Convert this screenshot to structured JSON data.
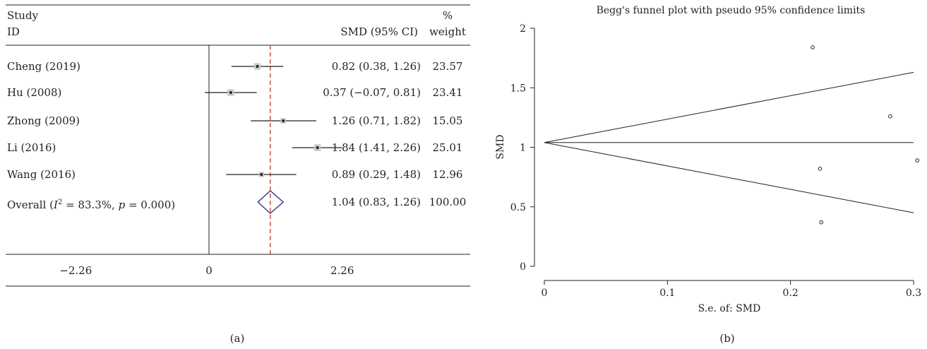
{
  "panel_a": {
    "header": {
      "study": "Study",
      "id": "ID",
      "smd": "SMD (95% CI)",
      "pct": "%",
      "weight": "weight"
    },
    "label": "(a)",
    "overall": {
      "prefix": "Overall (",
      "i": "I",
      "sup": "2",
      "i2_value": " = 83.3%, ",
      "p": "p",
      "p_value": " = 0.000)"
    }
  },
  "panel_b": {
    "label": "(b)"
  },
  "chart_data": [
    {
      "type": "forest",
      "x_ticks": [
        {
          "value": -2.26,
          "label": "−2.26"
        },
        {
          "value": 0,
          "label": "0"
        },
        {
          "value": 2.26,
          "label": "2.26"
        }
      ],
      "xlim": [
        -2.26,
        2.26
      ],
      "null_line": 0,
      "overall_line": 1.04,
      "studies": [
        {
          "name": "Cheng (2019)",
          "smd": 0.82,
          "lo": 0.38,
          "hi": 1.26,
          "ci_text": "0.82 (0.38, 1.26)",
          "weight": "23.57"
        },
        {
          "name": "Hu (2008)",
          "smd": 0.37,
          "lo": -0.07,
          "hi": 0.81,
          "ci_text": "0.37 (−0.07, 0.81)",
          "weight": "23.41"
        },
        {
          "name": "Zhong (2009)",
          "smd": 1.26,
          "lo": 0.71,
          "hi": 1.82,
          "ci_text": "1.26 (0.71, 1.82)",
          "weight": "15.05"
        },
        {
          "name": "Li (2016)",
          "smd": 1.84,
          "lo": 1.41,
          "hi": 2.26,
          "ci_text": "1.84 (1.41, 2.26)",
          "weight": "25.01"
        },
        {
          "name": "Wang (2016)",
          "smd": 0.89,
          "lo": 0.29,
          "hi": 1.48,
          "ci_text": "0.89 (0.29, 1.48)",
          "weight": "12.96"
        }
      ],
      "overall": {
        "smd": 1.04,
        "lo": 0.83,
        "hi": 1.26,
        "ci_text": "1.04 (0.83, 1.26)",
        "weight": "100.00"
      }
    },
    {
      "type": "scatter",
      "title": "Begg's funnel plot with pseudo 95% confidence limits",
      "xlabel": "S.e. of: SMD",
      "ylabel": "SMD",
      "xlim": [
        0,
        0.3
      ],
      "ylim": [
        0,
        2
      ],
      "x_ticks": [
        0,
        0.1,
        0.2,
        0.3
      ],
      "x_tick_labels": [
        "0",
        "0.1",
        "0.2",
        "0.3"
      ],
      "y_ticks": [
        0,
        0.5,
        1,
        1.5,
        2
      ],
      "y_tick_labels": [
        "0",
        "0.5",
        "1",
        "1.5",
        "2"
      ],
      "points": [
        {
          "x": 0.218,
          "y": 1.84
        },
        {
          "x": 0.281,
          "y": 1.26
        },
        {
          "x": 0.303,
          "y": 0.89
        },
        {
          "x": 0.224,
          "y": 0.82
        },
        {
          "x": 0.225,
          "y": 0.37
        }
      ],
      "pooled": 1.04,
      "funnel_upper": [
        [
          0,
          1.04
        ],
        [
          0.3,
          1.63
        ]
      ],
      "funnel_lower": [
        [
          0,
          1.04
        ],
        [
          0.3,
          0.45
        ]
      ]
    }
  ]
}
